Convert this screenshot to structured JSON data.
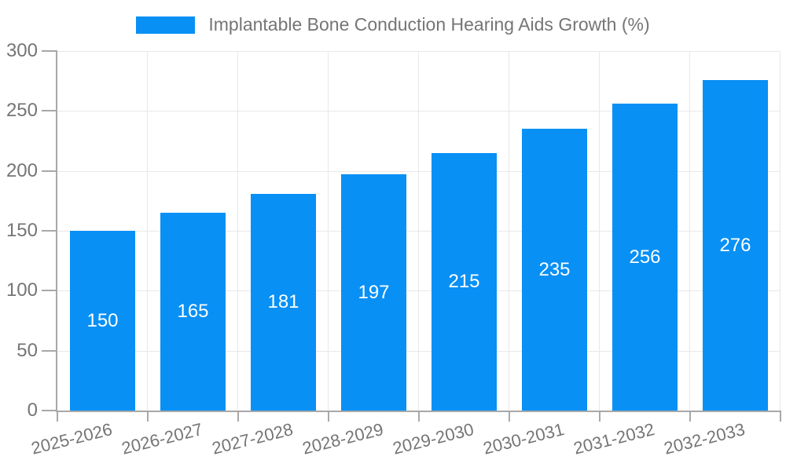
{
  "legend": {
    "label": "Implantable Bone Conduction Hearing Aids Growth (%)"
  },
  "chart_data": {
    "type": "bar",
    "title": "Implantable Bone Conduction Hearing Aids Growth (%)",
    "categories": [
      "2025-2026",
      "2026-2027",
      "2027-2028",
      "2028-2029",
      "2029-2030",
      "2030-2031",
      "2031-2032",
      "2032-2033"
    ],
    "values": [
      150,
      165,
      181,
      197,
      215,
      235,
      256,
      276
    ],
    "value_labels": [
      "150",
      "165",
      "181",
      "197",
      "215",
      "235",
      "256",
      "276"
    ],
    "xlabel": "",
    "ylabel": "",
    "ylim": [
      0,
      300
    ],
    "yticks": [
      0,
      50,
      100,
      150,
      200,
      250,
      300
    ],
    "grid": true,
    "legend_position": "top-center",
    "value_labels_inside_bars": true
  },
  "colors": {
    "accent": "#0890f5",
    "bar_value_text": "#ffffff",
    "tick_text": "#757575",
    "axis_line": "#a8a8a8",
    "gridline": "#e8e8e8",
    "background": "#ffffff"
  }
}
